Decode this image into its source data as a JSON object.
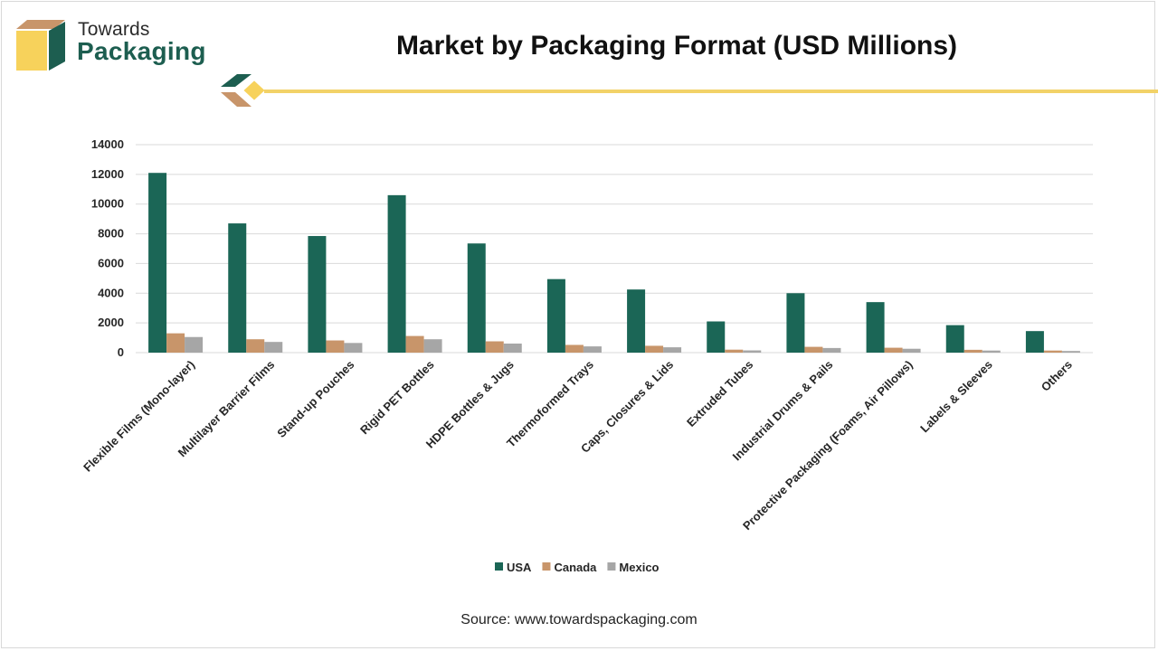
{
  "brand": {
    "line1": "Towards",
    "line2": "Packaging",
    "logo_icon": "box-logo-icon"
  },
  "title": "Market by Packaging Format (USD Millions)",
  "source": "Source: www.towardspackaging.com",
  "colors": {
    "usa": "#1b6656",
    "canada": "#c8956a",
    "mexico": "#a6a6a6",
    "accent": "#f2d268",
    "brand": "#1d5e50"
  },
  "chart_data": {
    "type": "bar",
    "categories": [
      "Flexible Films (Mono-layer)",
      "Multilayer Barrier Films",
      "Stand-up Pouches",
      "Rigid PET Bottles",
      "HDPE Bottles & Jugs",
      "Thermoformed Trays",
      "Caps, Closures & Lids",
      "Extruded Tubes",
      "Industrial Drums & Pails",
      "Protective Packaging (Foams, Air Pillows)",
      "Labels & Sleeves",
      "Others"
    ],
    "series": [
      {
        "name": "USA",
        "color": "#1b6656",
        "values": [
          12100,
          8700,
          7850,
          10600,
          7350,
          4950,
          4250,
          2100,
          4000,
          3400,
          1850,
          1450
        ]
      },
      {
        "name": "Canada",
        "color": "#c8956a",
        "values": [
          1300,
          900,
          820,
          1120,
          760,
          520,
          460,
          200,
          390,
          330,
          190,
          140
        ]
      },
      {
        "name": "Mexico",
        "color": "#a6a6a6",
        "values": [
          1050,
          720,
          650,
          900,
          610,
          420,
          360,
          150,
          310,
          260,
          140,
          110
        ]
      }
    ],
    "yticks": [
      0,
      2000,
      4000,
      6000,
      8000,
      10000,
      12000,
      14000
    ],
    "ylim": [
      0,
      14000
    ],
    "grid": true,
    "legend": "bottom-center"
  }
}
